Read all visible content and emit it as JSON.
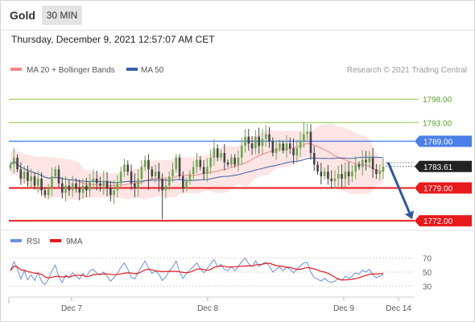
{
  "header": {
    "symbol": "Gold",
    "timeframe": "30 MIN",
    "datetime": "Thursday, December 9, 2021 12:57:07 AM CET",
    "credit": "Research © 2021 Trading Central"
  },
  "colors": {
    "ma20": "#f2858a",
    "ma50": "#3a5fa8",
    "bb_fill": "#fde0e1",
    "bullish": "#6aa84f",
    "bearish": "#444444",
    "resistance": "#8dc63f",
    "pivot": "#4a7fe8",
    "support": "#e8191b",
    "last_price": "#222222",
    "rsi": "#6a8fe0",
    "rsi_ma": "#e8191b",
    "arrow": "#2c5aa0"
  },
  "chart_data": [
    {
      "type": "candlestick",
      "title": "Gold",
      "timeframe": "30 MIN",
      "x_ticks": [
        "Dec 7",
        "Dec 8",
        "Dec 9",
        "Dec 14"
      ],
      "ylim": [
        1771,
        1802
      ],
      "legend": {
        "position": "top-left",
        "items": [
          "MA 20 + Bollinger Bands",
          "MA 50"
        ]
      },
      "levels": [
        {
          "label": "1798.00",
          "value": 1798.0,
          "kind": "resistance"
        },
        {
          "label": "1793.00",
          "value": 1793.0,
          "kind": "resistance"
        },
        {
          "label": "1789.00",
          "value": 1789.0,
          "kind": "pivot"
        },
        {
          "label": "1779.00",
          "value": 1779.0,
          "kind": "support"
        },
        {
          "label": "1772.00",
          "value": 1772.0,
          "kind": "support"
        }
      ],
      "last_price": {
        "label": "1783.61",
        "value": 1783.61
      },
      "projection": {
        "from": 1784.5,
        "to": 1772.0
      },
      "close": [
        1784.0,
        1785.5,
        1783.0,
        1781.0,
        1782.5,
        1780.5,
        1781.5,
        1779.5,
        1781.0,
        1778.5,
        1777.5,
        1779.0,
        1781.5,
        1783.0,
        1780.0,
        1778.0,
        1779.5,
        1778.5,
        1780.0,
        1779.0,
        1778.0,
        1779.5,
        1778.5,
        1780.5,
        1781.0,
        1780.0,
        1779.5,
        1780.5,
        1779.0,
        1777.5,
        1778.5,
        1780.0,
        1782.5,
        1784.0,
        1782.5,
        1780.0,
        1779.0,
        1781.0,
        1783.5,
        1785.0,
        1783.0,
        1781.5,
        1782.5,
        1781.0,
        1778.5,
        1779.5,
        1781.5,
        1783.0,
        1785.5,
        1781.5,
        1779.0,
        1780.5,
        1782.0,
        1783.5,
        1785.0,
        1783.5,
        1782.0,
        1783.5,
        1785.5,
        1787.5,
        1785.5,
        1786.5,
        1784.5,
        1784.0,
        1785.5,
        1784.0,
        1785.5,
        1788.0,
        1790.0,
        1788.5,
        1787.5,
        1790.0,
        1788.0,
        1789.5,
        1790.5,
        1789.0,
        1786.5,
        1787.5,
        1788.5,
        1787.0,
        1788.5,
        1787.5,
        1786.0,
        1787.5,
        1789.0,
        1790.5,
        1791.0,
        1786.5,
        1784.0,
        1782.5,
        1781.5,
        1782.5,
        1781.0,
        1780.5,
        1781.0,
        1782.0,
        1781.0,
        1782.5,
        1781.5,
        1782.5,
        1784.0,
        1783.5,
        1785.0,
        1784.5,
        1785.5,
        1783.0,
        1782.0,
        1782.5,
        1783.61
      ],
      "rsi": {
        "ylim": [
          20,
          80
        ],
        "y_ticks": [
          70,
          50,
          30
        ],
        "legend": [
          "RSI",
          "9MA"
        ],
        "values": [
          52,
          65,
          55,
          40,
          52,
          39,
          46,
          38,
          49,
          37,
          32,
          40,
          52,
          60,
          43,
          35,
          46,
          42,
          49,
          44,
          40,
          48,
          43,
          52,
          54,
          48,
          46,
          50,
          44,
          37,
          42,
          48,
          57,
          63,
          54,
          43,
          40,
          50,
          58,
          66,
          56,
          48,
          52,
          47,
          38,
          43,
          52,
          57,
          66,
          50,
          41,
          48,
          53,
          58,
          63,
          55,
          49,
          55,
          62,
          68,
          58,
          61,
          54,
          52,
          58,
          52,
          58,
          65,
          70,
          62,
          58,
          66,
          58,
          62,
          64,
          59,
          50,
          54,
          57,
          52,
          57,
          54,
          49,
          54,
          59,
          63,
          64,
          50,
          42,
          40,
          37,
          41,
          37,
          35,
          37,
          41,
          38,
          44,
          41,
          44,
          49,
          47,
          53,
          50,
          54,
          46,
          42,
          44,
          47
        ]
      }
    }
  ]
}
